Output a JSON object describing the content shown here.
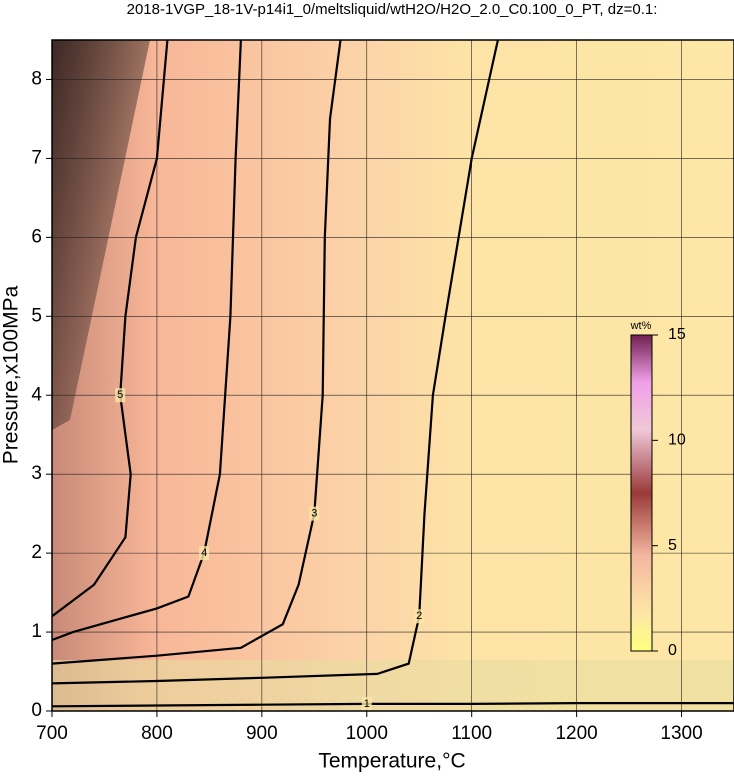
{
  "chart_data": {
    "type": "contour",
    "title": "2018-1VGP_18-1V-p14i1_0/meltsliquid/wtH2O/H2O_2.0_C0.100_0_PT, dz=0.1:",
    "x_label": "Temperature,°C",
    "y_label": "Pressure,x100MPa",
    "xlim": [
      700,
      1350
    ],
    "ylim": [
      0,
      8.5
    ],
    "xticks": [
      700,
      800,
      900,
      1000,
      1100,
      1200,
      1300
    ],
    "yticks": [
      0,
      1,
      2,
      3,
      4,
      5,
      6,
      7,
      8
    ],
    "grid": true,
    "contours": [
      {
        "level": 1,
        "x": [
          700,
          800,
          900,
          1000,
          1100,
          1200,
          1350
        ],
        "y": [
          0.06,
          0.07,
          0.08,
          0.09,
          0.09,
          0.1,
          0.1
        ]
      },
      {
        "level": 2,
        "x": [
          700,
          800,
          900,
          1010,
          1040,
          1050,
          1055,
          1063,
          1075,
          1100,
          1125
        ],
        "y": [
          0.35,
          0.38,
          0.42,
          0.47,
          0.6,
          1.2,
          2.5,
          4,
          5,
          7,
          8.5
        ]
      },
      {
        "level": 3,
        "x": [
          700,
          800,
          880,
          920,
          935,
          950,
          958,
          960,
          965,
          975
        ],
        "y": [
          0.6,
          0.7,
          0.8,
          1.1,
          1.6,
          2.5,
          4,
          6,
          7.5,
          8.5
        ]
      },
      {
        "level": 4,
        "x": [
          700,
          720,
          760,
          800,
          830,
          845,
          860,
          870,
          875,
          880
        ],
        "y": [
          0.9,
          1.0,
          1.15,
          1.3,
          1.45,
          2,
          3,
          5,
          7,
          8.5
        ]
      },
      {
        "level": 5,
        "x": [
          700,
          710,
          740,
          770,
          775,
          765,
          770,
          780,
          800,
          810
        ],
        "y": [
          1.2,
          1.3,
          1.6,
          2.2,
          3,
          4,
          5,
          6,
          7,
          8.5
        ]
      }
    ],
    "colorbar": {
      "label": "wt%",
      "lim": [
        0,
        15
      ],
      "ticks": [
        0,
        5,
        10,
        15
      ]
    }
  }
}
